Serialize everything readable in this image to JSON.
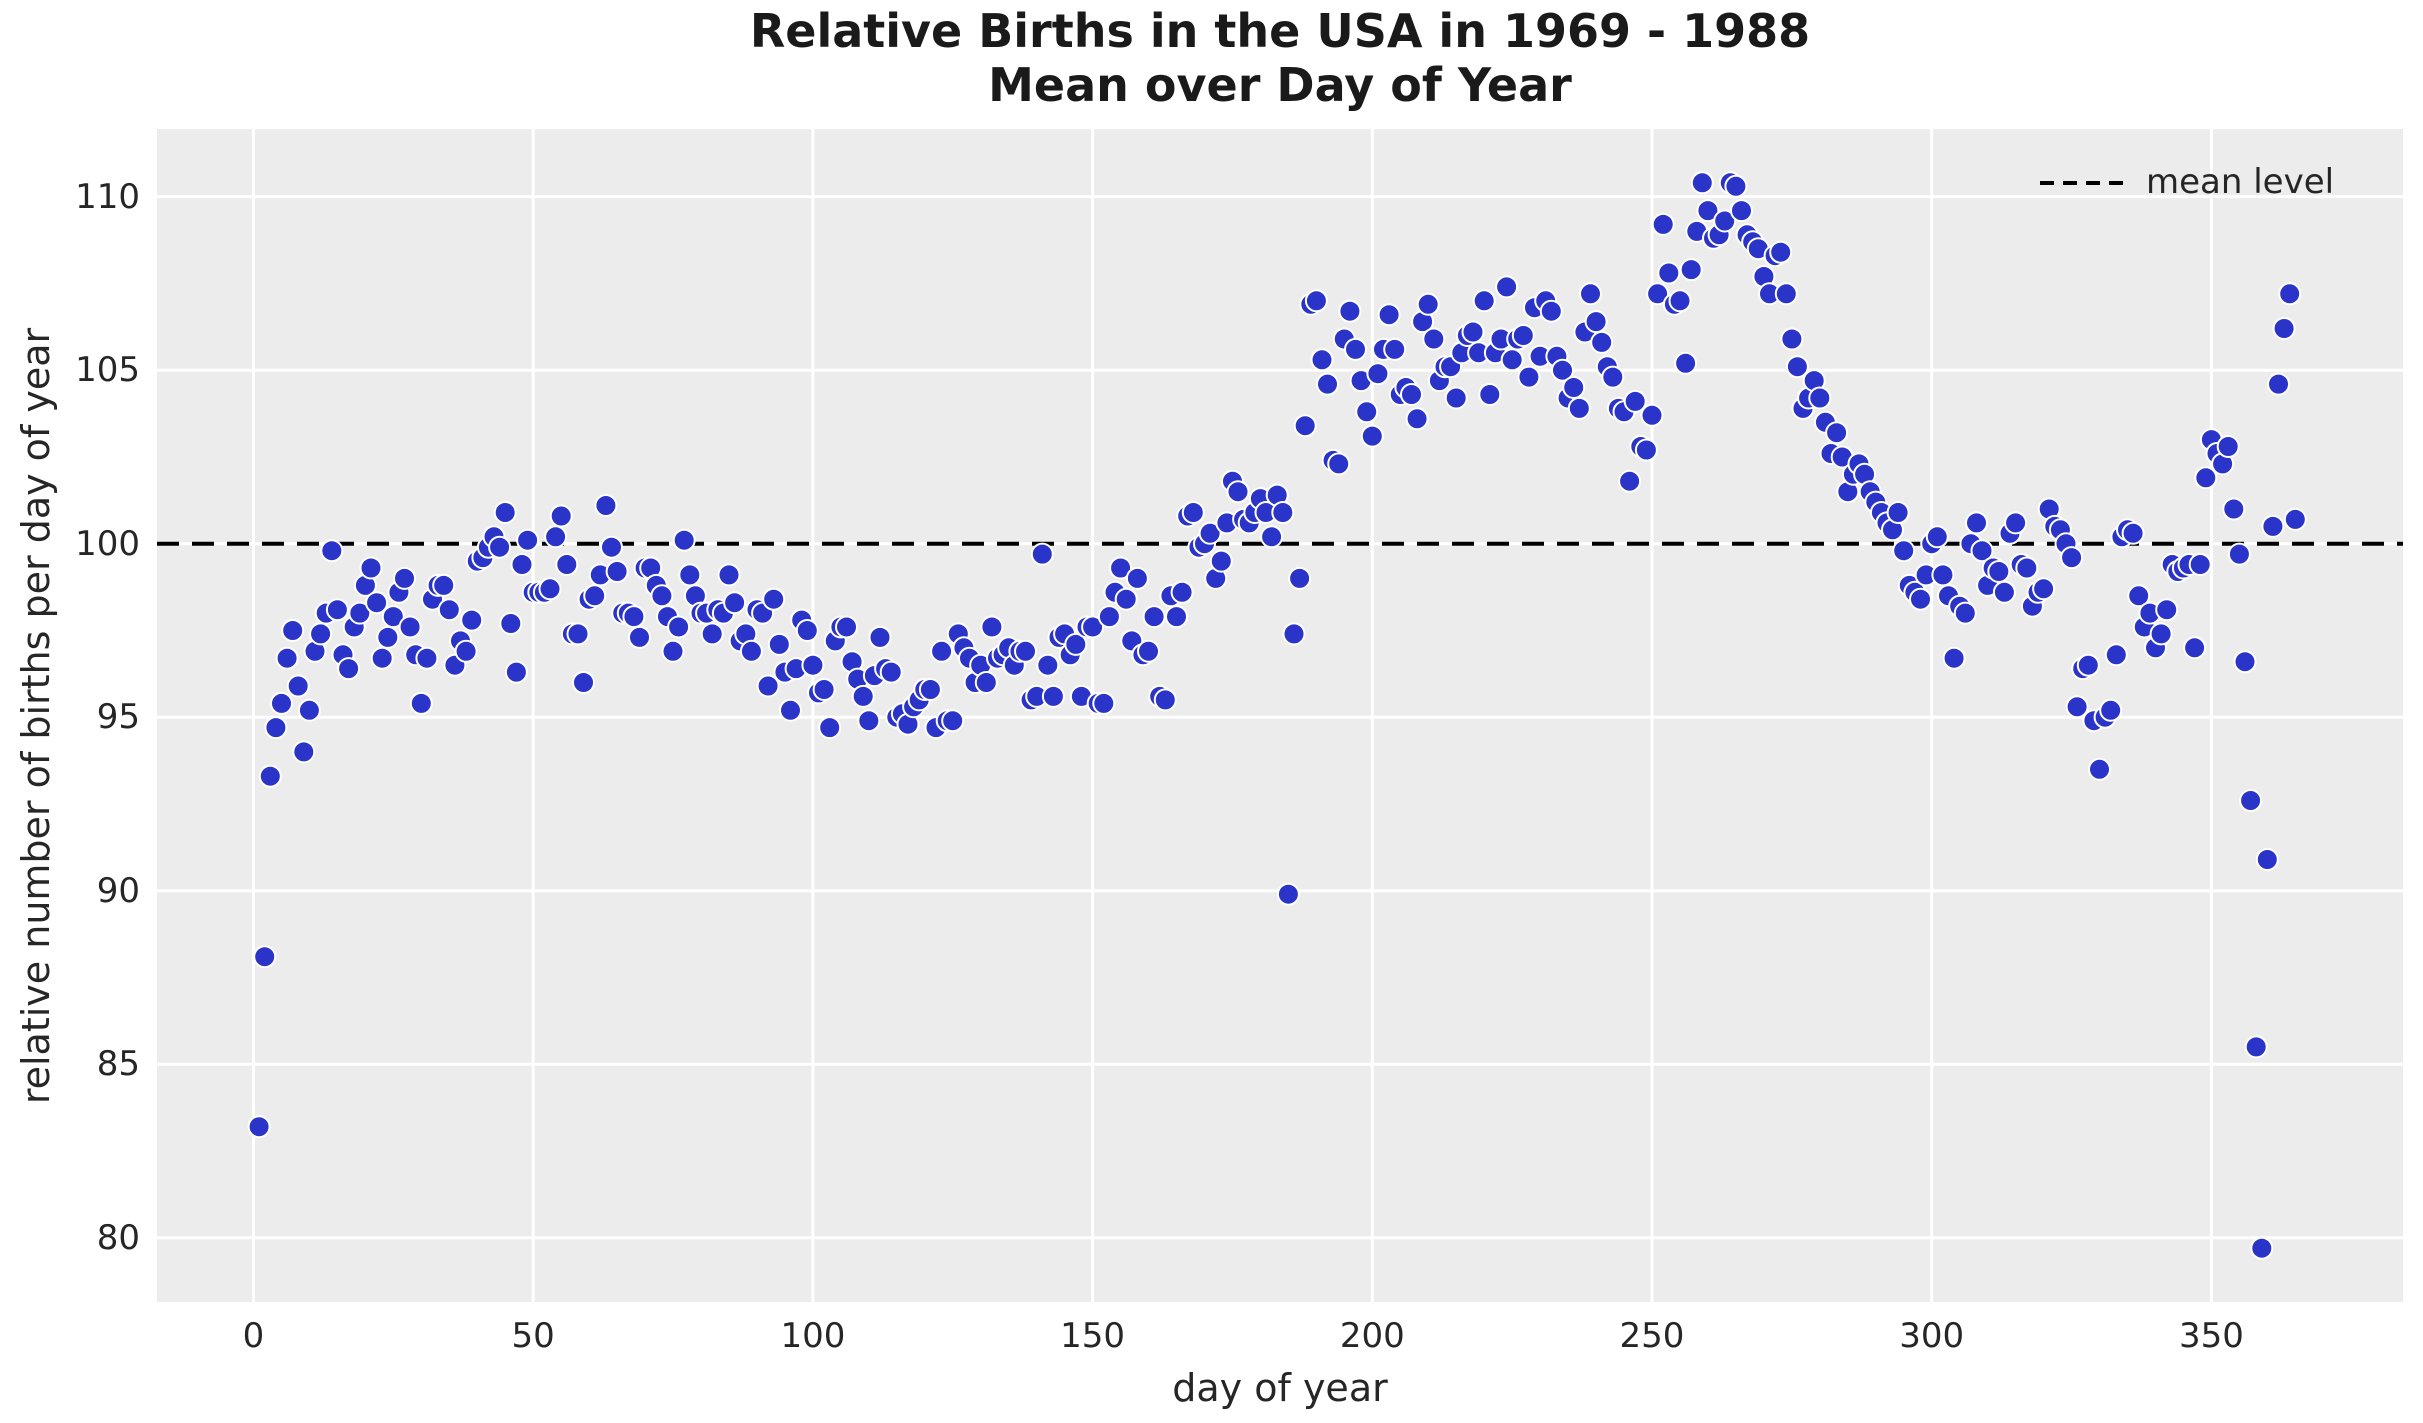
{
  "title": {
    "line1": "Relative Births in the USA in 1969 - 1988",
    "line2": "Mean over Day of Year"
  },
  "chart_data": {
    "type": "scatter",
    "title": "Relative Births in the USA in 1969 - 1988",
    "subtitle": "Mean over Day of Year",
    "xlabel": "day of year",
    "ylabel": "relative number of births per day of year",
    "xticks": [
      0,
      50,
      100,
      150,
      200,
      250,
      300,
      350
    ],
    "yticks": [
      80,
      85,
      90,
      95,
      100,
      105,
      110
    ],
    "xlim": [
      -17.25,
      384.25
    ],
    "ylim": [
      78.15,
      111.95
    ],
    "grid": true,
    "panel_color": "#ececec",
    "gridline_color": "#ffffff",
    "point_color": "#2b34c9",
    "point_edge_color": "#ffffff",
    "text_color": "#262626",
    "mean_line": {
      "y": 100,
      "color": "#000000",
      "style": "dashed"
    },
    "legend": {
      "position": "upper right",
      "entries": [
        {
          "label": "mean level",
          "style": "dashed-black-line"
        }
      ]
    },
    "series": [
      {
        "name": "mean relative births per day of year",
        "x_start": 1,
        "x_step": 1,
        "n_points": 365,
        "y": [
          83.2,
          88.1,
          93.3,
          94.7,
          95.4,
          96.7,
          97.5,
          95.9,
          94.0,
          95.2,
          96.9,
          97.4,
          98.0,
          99.8,
          98.1,
          96.8,
          96.4,
          97.6,
          98.0,
          98.8,
          99.3,
          98.3,
          96.7,
          97.3,
          97.9,
          98.6,
          99.0,
          97.6,
          96.8,
          95.4,
          96.7,
          98.4,
          98.8,
          98.8,
          98.1,
          96.5,
          97.2,
          96.9,
          97.8,
          99.5,
          99.6,
          99.9,
          100.2,
          99.9,
          100.9,
          97.7,
          96.3,
          99.4,
          100.1,
          98.6,
          98.6,
          98.6,
          98.7,
          100.2,
          100.8,
          99.4,
          97.4,
          97.4,
          96.0,
          98.4,
          98.5,
          99.1,
          101.1,
          99.9,
          99.2,
          98.0,
          98.0,
          97.9,
          97.3,
          99.3,
          99.3,
          98.8,
          98.5,
          97.9,
          96.9,
          97.6,
          100.1,
          99.1,
          98.5,
          98.0,
          98.0,
          97.4,
          98.1,
          98.0,
          99.1,
          98.3,
          97.2,
          97.4,
          96.9,
          98.1,
          98.0,
          95.9,
          98.4,
          97.1,
          96.3,
          95.2,
          96.4,
          97.8,
          97.5,
          96.5,
          95.7,
          95.8,
          94.7,
          97.2,
          97.6,
          97.6,
          96.6,
          96.1,
          95.6,
          94.9,
          96.2,
          97.3,
          96.4,
          96.3,
          95.0,
          95.1,
          94.8,
          95.3,
          95.5,
          95.8,
          95.8,
          94.7,
          96.9,
          94.9,
          94.9,
          97.4,
          97.0,
          96.7,
          96.0,
          96.5,
          96.0,
          97.6,
          96.7,
          96.8,
          97.0,
          96.5,
          96.9,
          96.9,
          95.5,
          95.6,
          99.7,
          96.5,
          95.6,
          97.3,
          97.4,
          96.8,
          97.1,
          95.6,
          97.6,
          97.6,
          95.4,
          95.4,
          97.9,
          98.6,
          99.3,
          98.4,
          97.2,
          99.0,
          96.8,
          96.9,
          97.9,
          95.6,
          95.5,
          98.5,
          97.9,
          98.6,
          100.8,
          100.9,
          99.9,
          100.0,
          100.3,
          99.0,
          99.5,
          100.6,
          101.8,
          101.5,
          100.7,
          100.6,
          100.9,
          101.3,
          100.9,
          100.2,
          101.4,
          100.9,
          89.9,
          97.4,
          99.0,
          103.4,
          106.9,
          107.0,
          105.3,
          104.6,
          102.4,
          102.3,
          105.9,
          106.7,
          105.6,
          104.7,
          103.8,
          103.1,
          104.9,
          105.6,
          106.6,
          105.6,
          104.3,
          104.5,
          104.3,
          103.6,
          106.4,
          106.9,
          105.9,
          104.7,
          105.1,
          105.1,
          104.2,
          105.5,
          106.0,
          106.1,
          105.5,
          107.0,
          104.3,
          105.5,
          105.9,
          107.4,
          105.3,
          105.9,
          106.0,
          104.8,
          106.8,
          105.4,
          107.0,
          106.7,
          105.4,
          105.0,
          104.2,
          104.5,
          103.9,
          106.1,
          107.2,
          106.4,
          105.8,
          105.1,
          104.8,
          103.9,
          103.8,
          101.8,
          104.1,
          102.8,
          102.7,
          103.7,
          107.2,
          109.2,
          107.8,
          106.9,
          107.0,
          105.2,
          107.9,
          109.0,
          110.4,
          109.6,
          108.8,
          108.9,
          109.3,
          110.4,
          110.3,
          109.6,
          108.9,
          108.7,
          108.5,
          107.7,
          107.2,
          108.3,
          108.4,
          107.2,
          105.9,
          105.1,
          103.9,
          104.2,
          104.7,
          104.2,
          103.5,
          102.6,
          103.2,
          102.5,
          101.5,
          102.0,
          102.3,
          102.0,
          101.5,
          101.2,
          100.9,
          100.6,
          100.4,
          100.9,
          99.8,
          98.8,
          98.6,
          98.4,
          99.1,
          100.0,
          100.2,
          99.1,
          98.5,
          96.7,
          98.2,
          98.0,
          100.0,
          100.6,
          99.8,
          98.8,
          99.3,
          99.2,
          98.6,
          100.3,
          100.6,
          99.4,
          99.3,
          98.2,
          98.6,
          98.7,
          101.0,
          100.5,
          100.4,
          100.0,
          99.6,
          95.3,
          96.4,
          96.5,
          94.9,
          93.5,
          95.0,
          95.2,
          96.8,
          100.2,
          100.4,
          100.3,
          98.5,
          97.6,
          98.0,
          97.0,
          97.4,
          98.1,
          99.4,
          99.2,
          99.3,
          99.4,
          97.0,
          99.4,
          101.9,
          103.0,
          102.6,
          102.3,
          102.8,
          101.0,
          99.7,
          96.6,
          92.6,
          85.5,
          79.7,
          90.9,
          100.5,
          104.6,
          106.2,
          107.2,
          100.7
        ]
      }
    ]
  }
}
